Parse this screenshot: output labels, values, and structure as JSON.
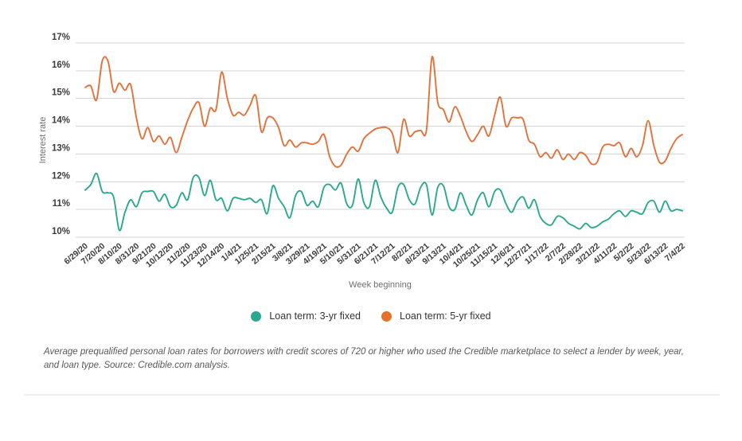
{
  "legend": {
    "items": [
      {
        "label": "Loan term: 3-yr fixed",
        "color": "#2aa98e"
      },
      {
        "label": "Loan term: 5-yr fixed",
        "color": "#e8702b"
      }
    ]
  },
  "footnote": "Average prequalified personal loan rates for borrowers with credit scores of 720 or higher who used the Credible marketplace to select a lender by week, year, and loan type. Source: Credible.com analysis.",
  "chart_data": {
    "type": "line",
    "title": "",
    "xlabel": "Week beginning",
    "ylabel": "Interest rate",
    "ylim": [
      10,
      17
    ],
    "y_ticks": [
      17,
      16,
      15,
      14,
      13,
      12,
      11,
      10
    ],
    "y_tick_suffix": "%",
    "grid": "horizontal",
    "grid_color": "#d4d4d4",
    "label_color": "#3c3c3c",
    "legend_position": "bottom",
    "x_tick_every": 3,
    "x_tick_labels": [
      "6/29/20",
      "7/20/20",
      "8/10/20",
      "8/31/20",
      "9/21/20",
      "10/12/20",
      "11/2/20",
      "11/23/20",
      "12/14/20",
      "1/4/21",
      "1/25/21",
      "2/15/21",
      "3/8/21",
      "3/29/21",
      "4/19/21",
      "5/10/21",
      "5/31/21",
      "6/21/21",
      "7/12/21",
      "8/2/21",
      "8/23/21",
      "9/13/21",
      "10/4/21",
      "10/25/21",
      "11/15/21",
      "12/6/21",
      "12/27/21",
      "1/17/22",
      "2/7/22",
      "2/28/22",
      "3/21/22",
      "4/11/22",
      "5/2/22",
      "5/23/22",
      "6/13/22",
      "7/4/22"
    ],
    "series": [
      {
        "name": "Loan term: 3-yr fixed",
        "color": "#2aa98e",
        "values": [
          11.7,
          11.9,
          12.3,
          11.65,
          11.6,
          11.45,
          10.25,
          10.9,
          11.35,
          11.1,
          11.6,
          11.65,
          11.65,
          11.3,
          11.55,
          11.1,
          11.15,
          11.6,
          11.35,
          12.15,
          12.15,
          11.5,
          12.05,
          11.35,
          11.4,
          10.95,
          11.4,
          11.4,
          11.35,
          11.4,
          11.25,
          11.35,
          10.85,
          11.85,
          11.4,
          11.1,
          10.7,
          11.5,
          11.65,
          11.15,
          11.3,
          11.1,
          11.8,
          11.9,
          11.7,
          11.95,
          11.2,
          11.15,
          12.1,
          11.25,
          11.1,
          12.05,
          11.45,
          11.05,
          10.9,
          11.8,
          11.9,
          11.35,
          11.2,
          11.8,
          11.9,
          10.8,
          11.8,
          11.85,
          11.1,
          11.0,
          11.6,
          11.15,
          10.8,
          11.35,
          11.6,
          11.1,
          11.65,
          11.7,
          11.2,
          10.9,
          11.3,
          11.45,
          11.05,
          11.35,
          10.75,
          10.5,
          10.45,
          10.75,
          10.7,
          10.5,
          10.4,
          10.3,
          10.5,
          10.35,
          10.4,
          10.55,
          10.65,
          10.85,
          10.95,
          10.75,
          10.95,
          10.9,
          10.85,
          11.25,
          11.3,
          10.9,
          11.3,
          10.95,
          11.0,
          10.95
        ]
      },
      {
        "name": "Loan term: 5-yr fixed",
        "color": "#e2713a",
        "values": [
          15.4,
          15.45,
          14.95,
          16.35,
          16.35,
          15.25,
          15.55,
          15.3,
          15.5,
          14.3,
          13.55,
          13.95,
          13.45,
          13.65,
          13.35,
          13.6,
          13.05,
          13.6,
          14.2,
          14.65,
          14.85,
          14.0,
          14.65,
          14.6,
          15.95,
          15.0,
          14.4,
          14.5,
          14.4,
          14.75,
          15.1,
          13.8,
          14.3,
          14.3,
          13.95,
          13.3,
          13.5,
          13.25,
          13.4,
          13.4,
          13.35,
          13.45,
          13.7,
          12.9,
          12.55,
          12.6,
          13.0,
          13.25,
          13.1,
          13.55,
          13.75,
          13.9,
          13.95,
          13.95,
          13.75,
          13.05,
          14.25,
          13.65,
          13.8,
          13.85,
          13.85,
          16.5,
          14.85,
          14.6,
          14.15,
          14.7,
          14.35,
          13.8,
          13.45,
          13.7,
          14.0,
          13.65,
          14.4,
          15.05,
          14.0,
          14.3,
          14.3,
          14.25,
          13.5,
          13.35,
          12.9,
          13.05,
          12.85,
          13.15,
          12.8,
          13.0,
          12.8,
          13.05,
          12.95,
          12.65,
          12.7,
          13.25,
          13.35,
          13.3,
          13.4,
          12.9,
          13.2,
          12.9,
          13.3,
          14.2,
          13.3,
          12.7,
          12.75,
          13.2,
          13.55,
          13.7
        ]
      }
    ]
  }
}
